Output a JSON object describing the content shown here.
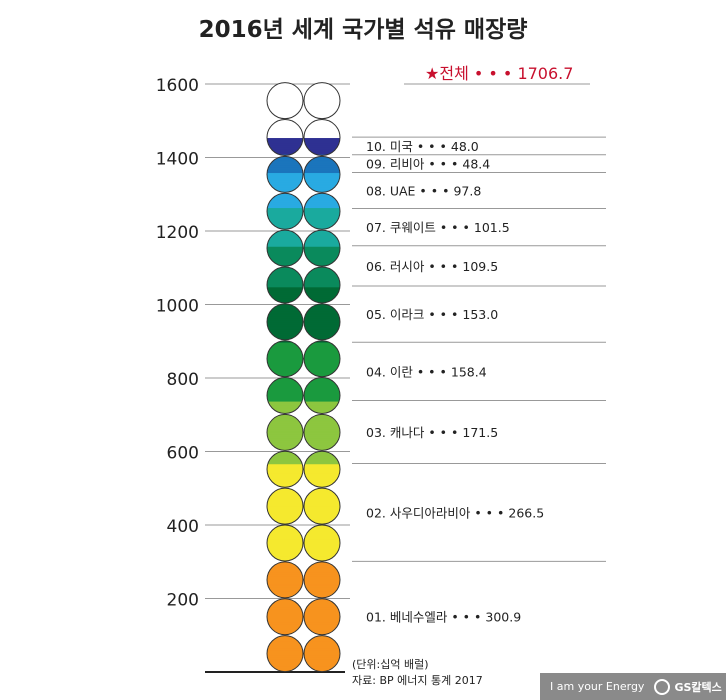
{
  "title": "2016년 세계 국가별 석유 매장량",
  "unit_note": "(단위:십억 배럴)",
  "source_note": "자료: BP 에너지 통계 2017",
  "footer": {
    "tagline": "I am your Energy",
    "brand": "GS칼텍스"
  },
  "chart_data": {
    "type": "bar",
    "title": "2016년 세계 국가별 석유 매장량",
    "ylim": [
      0,
      1700
    ],
    "yticks": [
      200,
      400,
      600,
      800,
      1000,
      1200,
      1400,
      1600
    ],
    "total": {
      "label": "★전체 • • • 1706.7",
      "value": 1706.7,
      "color": "#c8102e"
    },
    "stack_bottom_to_top": [
      {
        "label": "01. 베네수엘라 • • • 300.9",
        "value": 300.9,
        "color": "#f7931e"
      },
      {
        "label": "02. 사우디아라비아 • • • 266.5",
        "value": 266.5,
        "color": "#f5e92e"
      },
      {
        "label": "03. 캐나다 • • • 171.5",
        "value": 171.5,
        "color": "#8dc63f"
      },
      {
        "label": "04. 이란 • • • 158.4",
        "value": 158.4,
        "color": "#1a9a3e"
      },
      {
        "label": "05. 이라크 • • • 153.0",
        "value": 153.0,
        "color": "#006a35"
      },
      {
        "label": "06. 러시아 • • • 109.5",
        "value": 109.5,
        "color": "#0a8a5c"
      },
      {
        "label": "07. 쿠웨이트 • • • 101.5",
        "value": 101.5,
        "color": "#1aaa9e"
      },
      {
        "label": "08. UAE • • • 97.8",
        "value": 97.8,
        "color": "#29aae2"
      },
      {
        "label": "09. 리비아 • • • 48.4",
        "value": 48.4,
        "color": "#1b75bc"
      },
      {
        "label": "10. 미국 • • • 48.0",
        "value": 48.0,
        "color": "#2e3192"
      }
    ],
    "grid": true
  }
}
